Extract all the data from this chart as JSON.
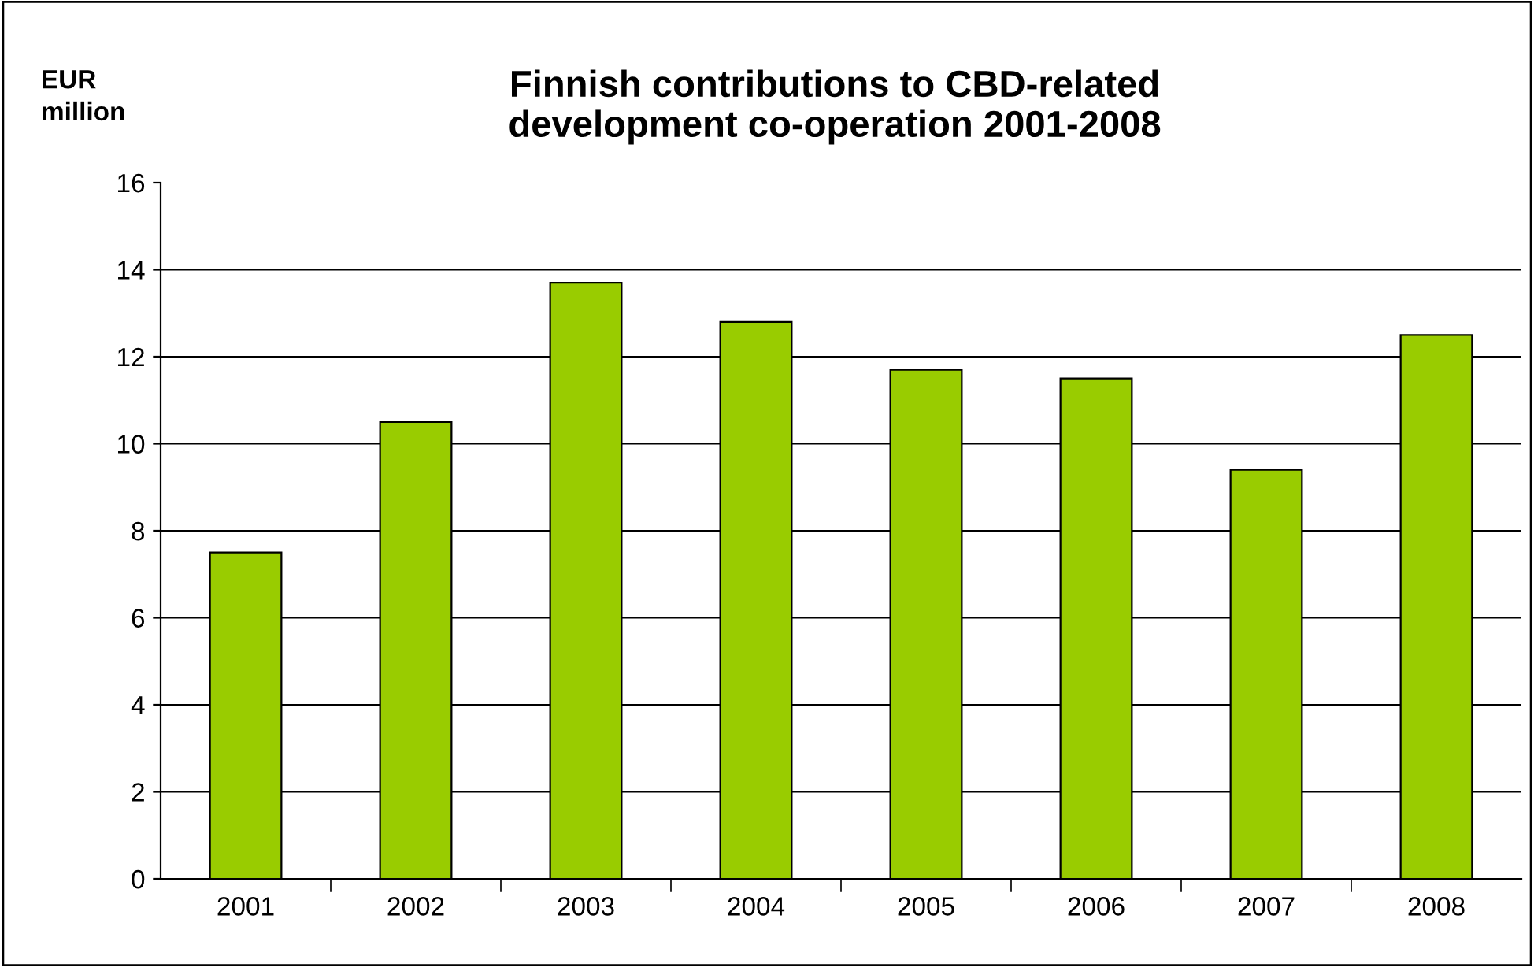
{
  "chart_data": {
    "type": "bar",
    "title": "Finnish contributions to CBD-related\ndevelopment co-operation 2001-2008",
    "ylabel": "EUR\nmillion",
    "categories": [
      "2001",
      "2002",
      "2003",
      "2004",
      "2005",
      "2006",
      "2007",
      "2008"
    ],
    "values": [
      7.5,
      10.5,
      13.7,
      12.8,
      11.7,
      11.5,
      9.4,
      12.5
    ],
    "color": "#99cc00",
    "ylim": [
      0,
      16
    ],
    "yticks": [
      0,
      2,
      4,
      6,
      8,
      10,
      12,
      14,
      16
    ],
    "grid": "y",
    "legend": false
  }
}
